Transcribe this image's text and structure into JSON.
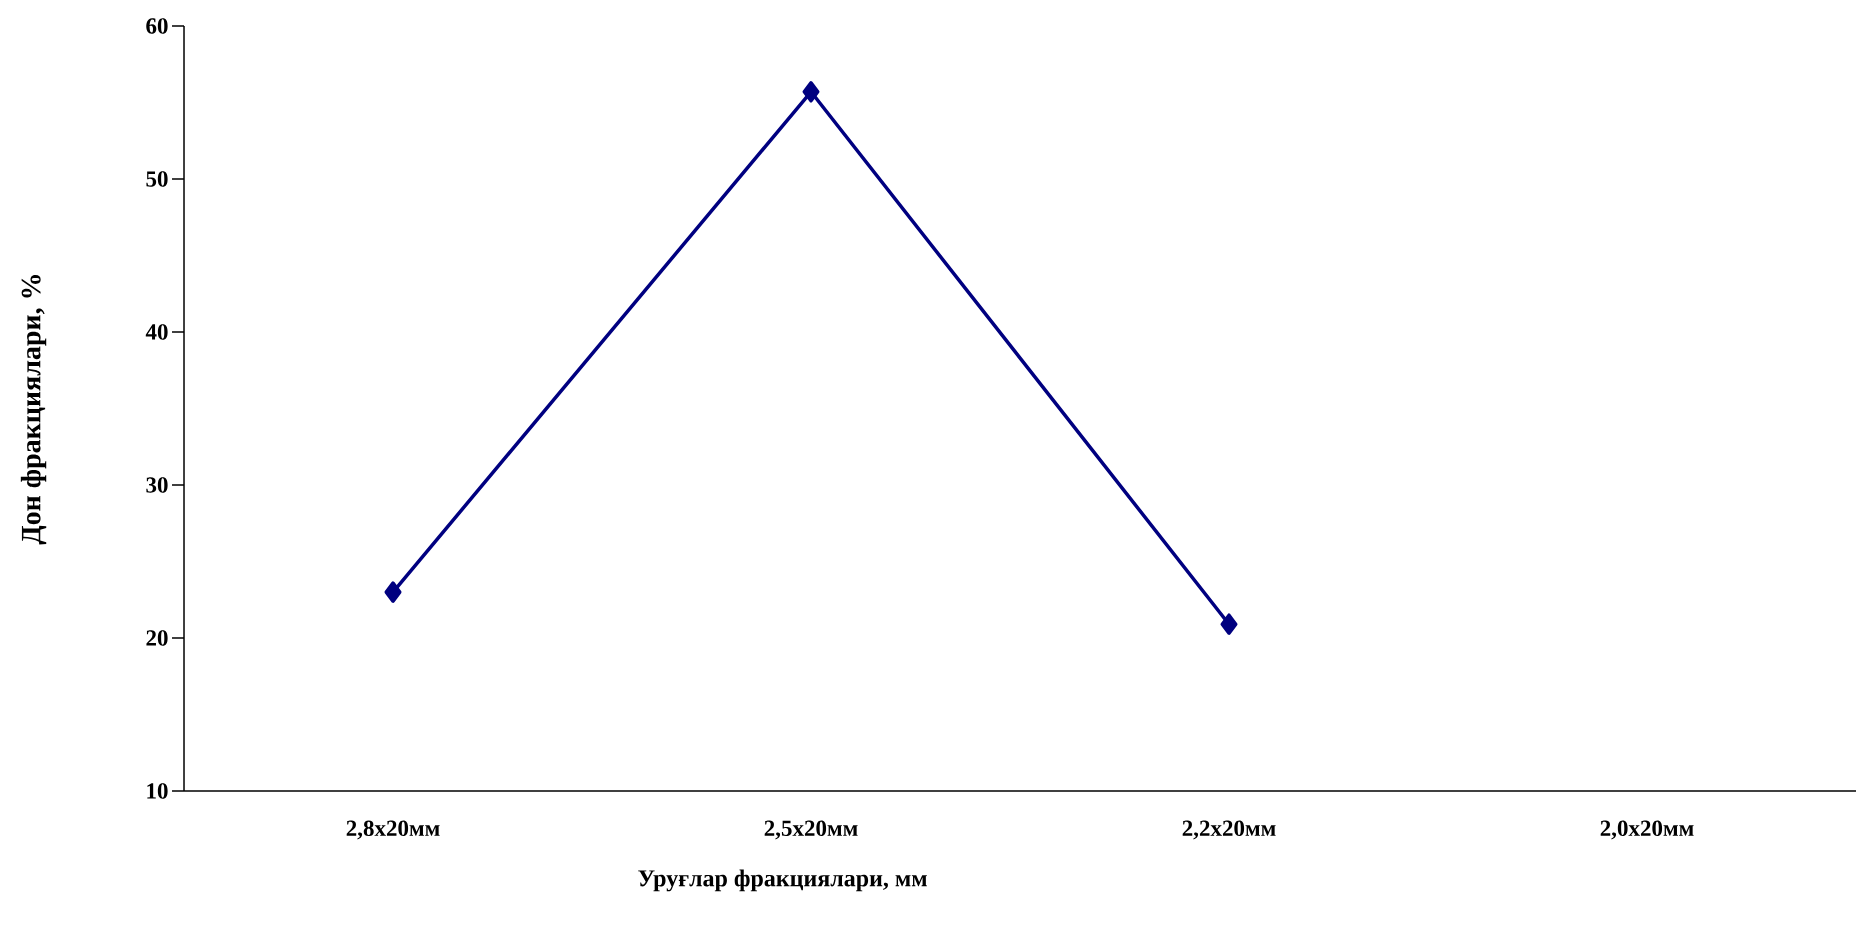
{
  "chart_data": {
    "type": "line",
    "xlabel": "Уруғлар фракциялари, мм",
    "ylabel": "Дон фракциялари, %",
    "categories": [
      "2,8x20мм",
      "2,5x20мм",
      "2,2x20мм",
      "2,0x20мм"
    ],
    "series": [
      {
        "color": "#000080",
        "values": [
          23.0,
          55.7,
          20.9,
          null
        ]
      }
    ],
    "ylim": [
      10,
      60
    ],
    "yticks": [
      10,
      20,
      30,
      40,
      50,
      60
    ],
    "marker": "diamond",
    "line_style": "solid",
    "grid": false
  }
}
